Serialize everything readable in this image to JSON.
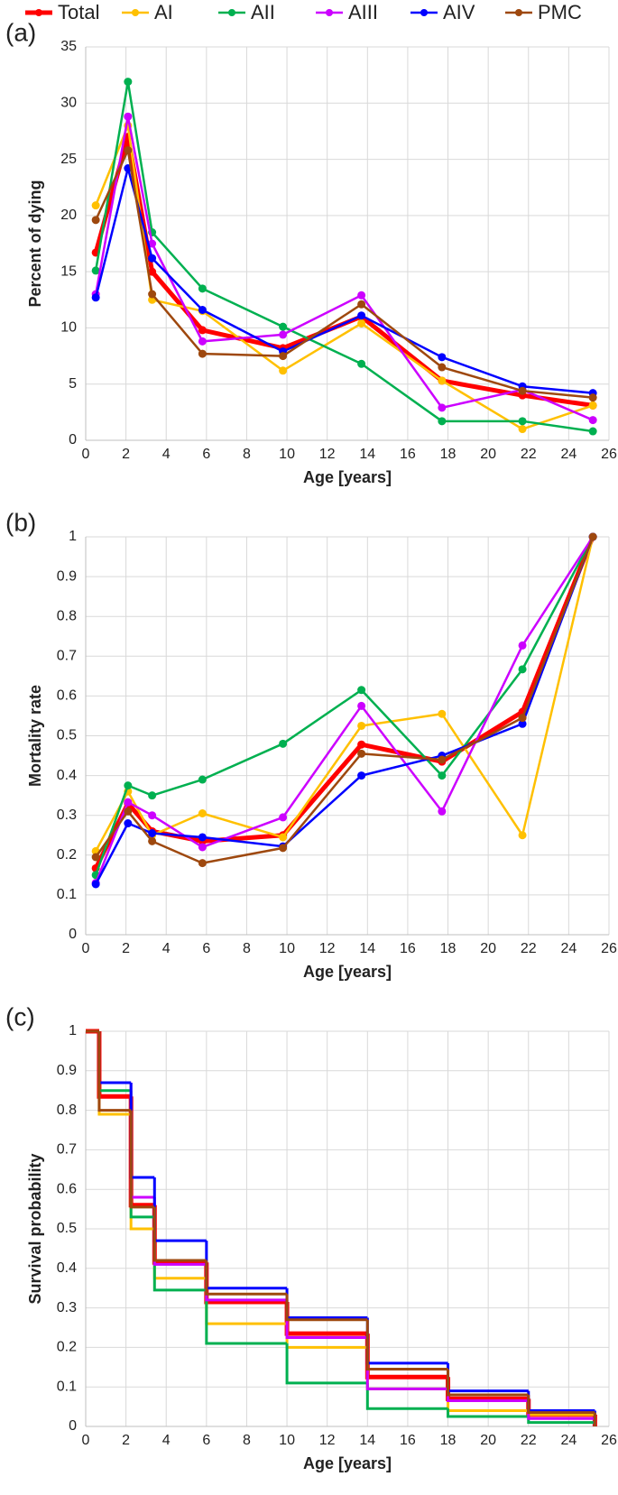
{
  "chart_data": [
    {
      "type": "line",
      "label": "(a)",
      "xlabel": "Age [years]",
      "ylabel": "Percent of dying",
      "xlim": [
        0,
        26
      ],
      "xticks": [
        0,
        2,
        4,
        6,
        8,
        10,
        12,
        14,
        16,
        18,
        20,
        22,
        24,
        26
      ],
      "ylim": [
        0,
        35
      ],
      "yticks": [
        0,
        5,
        10,
        15,
        20,
        25,
        30,
        35
      ],
      "grid": true,
      "x": [
        0.5,
        2.1,
        3.3,
        5.8,
        9.8,
        13.7,
        17.7,
        21.7,
        25.2
      ],
      "series": [
        {
          "name": "Total",
          "color": "#ff0000",
          "values": [
            16.7,
            27,
            15,
            9.8,
            8.2,
            11,
            5.3,
            4,
            3.1
          ]
        },
        {
          "name": "AI",
          "color": "#ffc000",
          "values": [
            20.9,
            28,
            12.5,
            11.5,
            6.2,
            10.4,
            5.3,
            1,
            3.1
          ]
        },
        {
          "name": "AII",
          "color": "#00b050",
          "values": [
            15.1,
            31.9,
            18.5,
            13.5,
            10.1,
            6.8,
            1.7,
            1.7,
            0.8
          ]
        },
        {
          "name": "AIII",
          "color": "#cc00ff",
          "values": [
            13,
            28.8,
            17.5,
            8.8,
            9.4,
            12.9,
            2.9,
            4.5,
            1.8
          ]
        },
        {
          "name": "AIV",
          "color": "#0000ff",
          "values": [
            12.7,
            24.2,
            16.2,
            11.6,
            7.9,
            11.1,
            7.4,
            4.8,
            4.2
          ]
        },
        {
          "name": "PMC",
          "color": "#9e480e",
          "values": [
            19.6,
            25.8,
            13,
            7.7,
            7.5,
            12.1,
            6.5,
            4.4,
            3.8
          ]
        }
      ]
    },
    {
      "type": "line",
      "label": "(b)",
      "xlabel": "Age [years]",
      "ylabel": "Mortality rate",
      "xlim": [
        0,
        26
      ],
      "xticks": [
        0,
        2,
        4,
        6,
        8,
        10,
        12,
        14,
        16,
        18,
        20,
        22,
        24,
        26
      ],
      "ylim": [
        0,
        1
      ],
      "yticks": [
        0,
        0.1,
        0.2,
        0.3,
        0.4,
        0.5,
        0.6,
        0.7,
        0.8,
        0.9,
        1
      ],
      "grid": true,
      "x": [
        0.5,
        2.1,
        3.3,
        5.8,
        9.8,
        13.7,
        17.7,
        21.7,
        25.2
      ],
      "series": [
        {
          "name": "Total",
          "color": "#ff0000",
          "values": [
            0.167,
            0.33,
            0.26,
            0.235,
            0.25,
            0.478,
            0.435,
            0.56,
            1
          ]
        },
        {
          "name": "AI",
          "color": "#ffc000",
          "values": [
            0.21,
            0.36,
            0.25,
            0.305,
            0.245,
            0.525,
            0.555,
            0.25,
            1
          ]
        },
        {
          "name": "AII",
          "color": "#00b050",
          "values": [
            0.15,
            0.375,
            0.35,
            0.39,
            0.48,
            0.615,
            0.4,
            0.667,
            1
          ]
        },
        {
          "name": "AIII",
          "color": "#cc00ff",
          "values": [
            0.13,
            0.333,
            0.3,
            0.22,
            0.295,
            0.575,
            0.31,
            0.727,
            1
          ]
        },
        {
          "name": "AIV",
          "color": "#0000ff",
          "values": [
            0.127,
            0.28,
            0.255,
            0.245,
            0.222,
            0.4,
            0.45,
            0.53,
            1
          ]
        },
        {
          "name": "PMC",
          "color": "#9e480e",
          "values": [
            0.195,
            0.31,
            0.235,
            0.18,
            0.218,
            0.455,
            0.44,
            0.545,
            1
          ]
        }
      ]
    },
    {
      "type": "step",
      "label": "(c)",
      "xlabel": "Age [years]",
      "ylabel": "Survival probability",
      "xlim": [
        0,
        26
      ],
      "xticks": [
        0,
        2,
        4,
        6,
        8,
        10,
        12,
        14,
        16,
        18,
        20,
        22,
        24,
        26
      ],
      "ylim": [
        0,
        1
      ],
      "yticks": [
        0,
        0.1,
        0.2,
        0.3,
        0.4,
        0.5,
        0.6,
        0.7,
        0.8,
        0.9,
        1
      ],
      "grid": true,
      "x": [
        0,
        0.67,
        2.25,
        3.42,
        6,
        10,
        14,
        18,
        22,
        25.3
      ],
      "series": [
        {
          "name": "Total",
          "color": "#ff0000",
          "values": [
            1,
            0.835,
            0.56,
            0.415,
            0.315,
            0.235,
            0.125,
            0.07,
            0.03,
            0
          ]
        },
        {
          "name": "AI",
          "color": "#ffc000",
          "values": [
            1,
            0.79,
            0.5,
            0.375,
            0.26,
            0.2,
            0.095,
            0.04,
            0.03,
            0
          ]
        },
        {
          "name": "AII",
          "color": "#00b050",
          "values": [
            1,
            0.85,
            0.53,
            0.345,
            0.21,
            0.11,
            0.045,
            0.025,
            0.01,
            0
          ]
        },
        {
          "name": "AIII",
          "color": "#cc00ff",
          "values": [
            1,
            0.87,
            0.58,
            0.41,
            0.32,
            0.225,
            0.095,
            0.065,
            0.02,
            0
          ]
        },
        {
          "name": "AIV",
          "color": "#0000ff",
          "values": [
            1,
            0.87,
            0.63,
            0.47,
            0.35,
            0.275,
            0.16,
            0.09,
            0.04,
            0
          ]
        },
        {
          "name": "PMC",
          "color": "#9e480e",
          "values": [
            1,
            0.8,
            0.555,
            0.42,
            0.335,
            0.27,
            0.145,
            0.08,
            0.035,
            0
          ]
        }
      ]
    }
  ]
}
